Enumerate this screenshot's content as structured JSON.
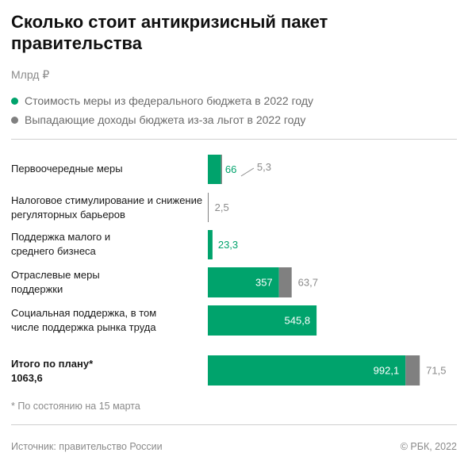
{
  "title": "Сколько стоит антикризисный пакет правительства",
  "unit": "Млрд ₽",
  "legend": [
    {
      "label": "Стоимость меры из федерального бюджета в 2022 году",
      "color": "#00a36c"
    },
    {
      "label": "Выпадающие доходы бюджета из-за льгот в 2022 году",
      "color": "#808080"
    }
  ],
  "rows": [
    {
      "label": "Первоочередные меры"
    },
    {
      "label": "Налоговое стимулирование и снижение регуляторных барьеров"
    },
    {
      "label": "Поддержка малого и среднего бизнеса"
    },
    {
      "label": "Отраслевые меры поддержки"
    },
    {
      "label": "Социальная поддержка, в том числе поддержка рынка труда"
    },
    {
      "label": "Итого по плану*",
      "sublabel": "1063,6"
    }
  ],
  "chart_data": {
    "type": "bar",
    "orientation": "horizontal",
    "stacked": true,
    "categories": [
      "Первоочередные меры",
      "Налоговое стимулирование и снижение регуляторных барьеров",
      "Поддержка малого и среднего бизнеса",
      "Отраслевые меры поддержки",
      "Социальная поддержка, в том числе поддержка рынка труда",
      "Итого по плану* 1063,6"
    ],
    "series": [
      {
        "values": [
          66,
          0,
          23.3,
          357,
          545.8,
          992.1
        ],
        "labels": [
          "66",
          "",
          "23,3",
          "357",
          "545,8",
          "992,1"
        ],
        "color": "#00a36c"
      },
      {
        "values": [
          5.3,
          2.5,
          0,
          63.7,
          0,
          71.5
        ],
        "labels": [
          "5,3",
          "2,5",
          "",
          "63,7",
          "",
          "71,5"
        ],
        "color": "#808080"
      }
    ],
    "xlim": [
      0,
      1100
    ],
    "grid": false,
    "legend_position": "top"
  },
  "note": "* По состоянию на 15 марта",
  "footer": {
    "source": "Источник: правительство России",
    "copyright": "© РБК, 2022"
  }
}
